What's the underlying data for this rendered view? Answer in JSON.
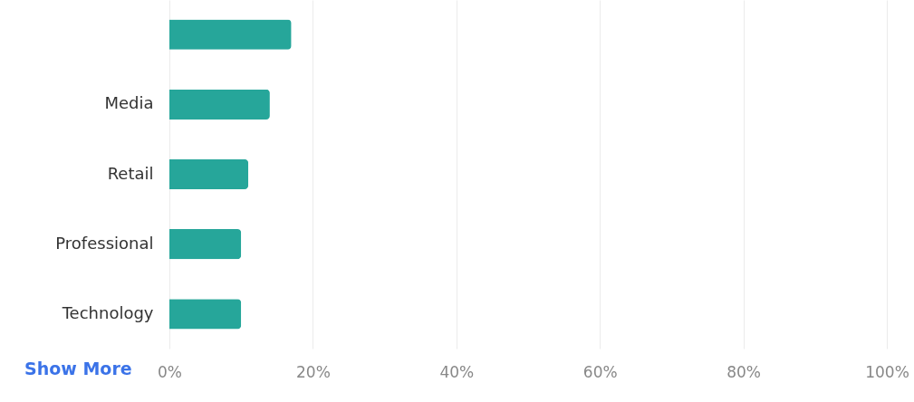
{
  "chart_data": {
    "type": "bar",
    "orientation": "horizontal",
    "categories": [
      null,
      "Media",
      "Retail",
      "Professional",
      "Technology"
    ],
    "values": [
      17,
      14,
      11,
      10,
      10
    ],
    "color": "#26a69a",
    "xlim": [
      0,
      100
    ],
    "xticks": [
      {
        "value": 0,
        "label": "0%"
      },
      {
        "value": 20,
        "label": "20%"
      },
      {
        "value": 40,
        "label": "40%"
      },
      {
        "value": 60,
        "label": "60%"
      },
      {
        "value": 80,
        "label": "80%"
      },
      {
        "value": 100,
        "label": "100%"
      }
    ],
    "grid": "x",
    "annotations": [
      "Show More"
    ]
  }
}
